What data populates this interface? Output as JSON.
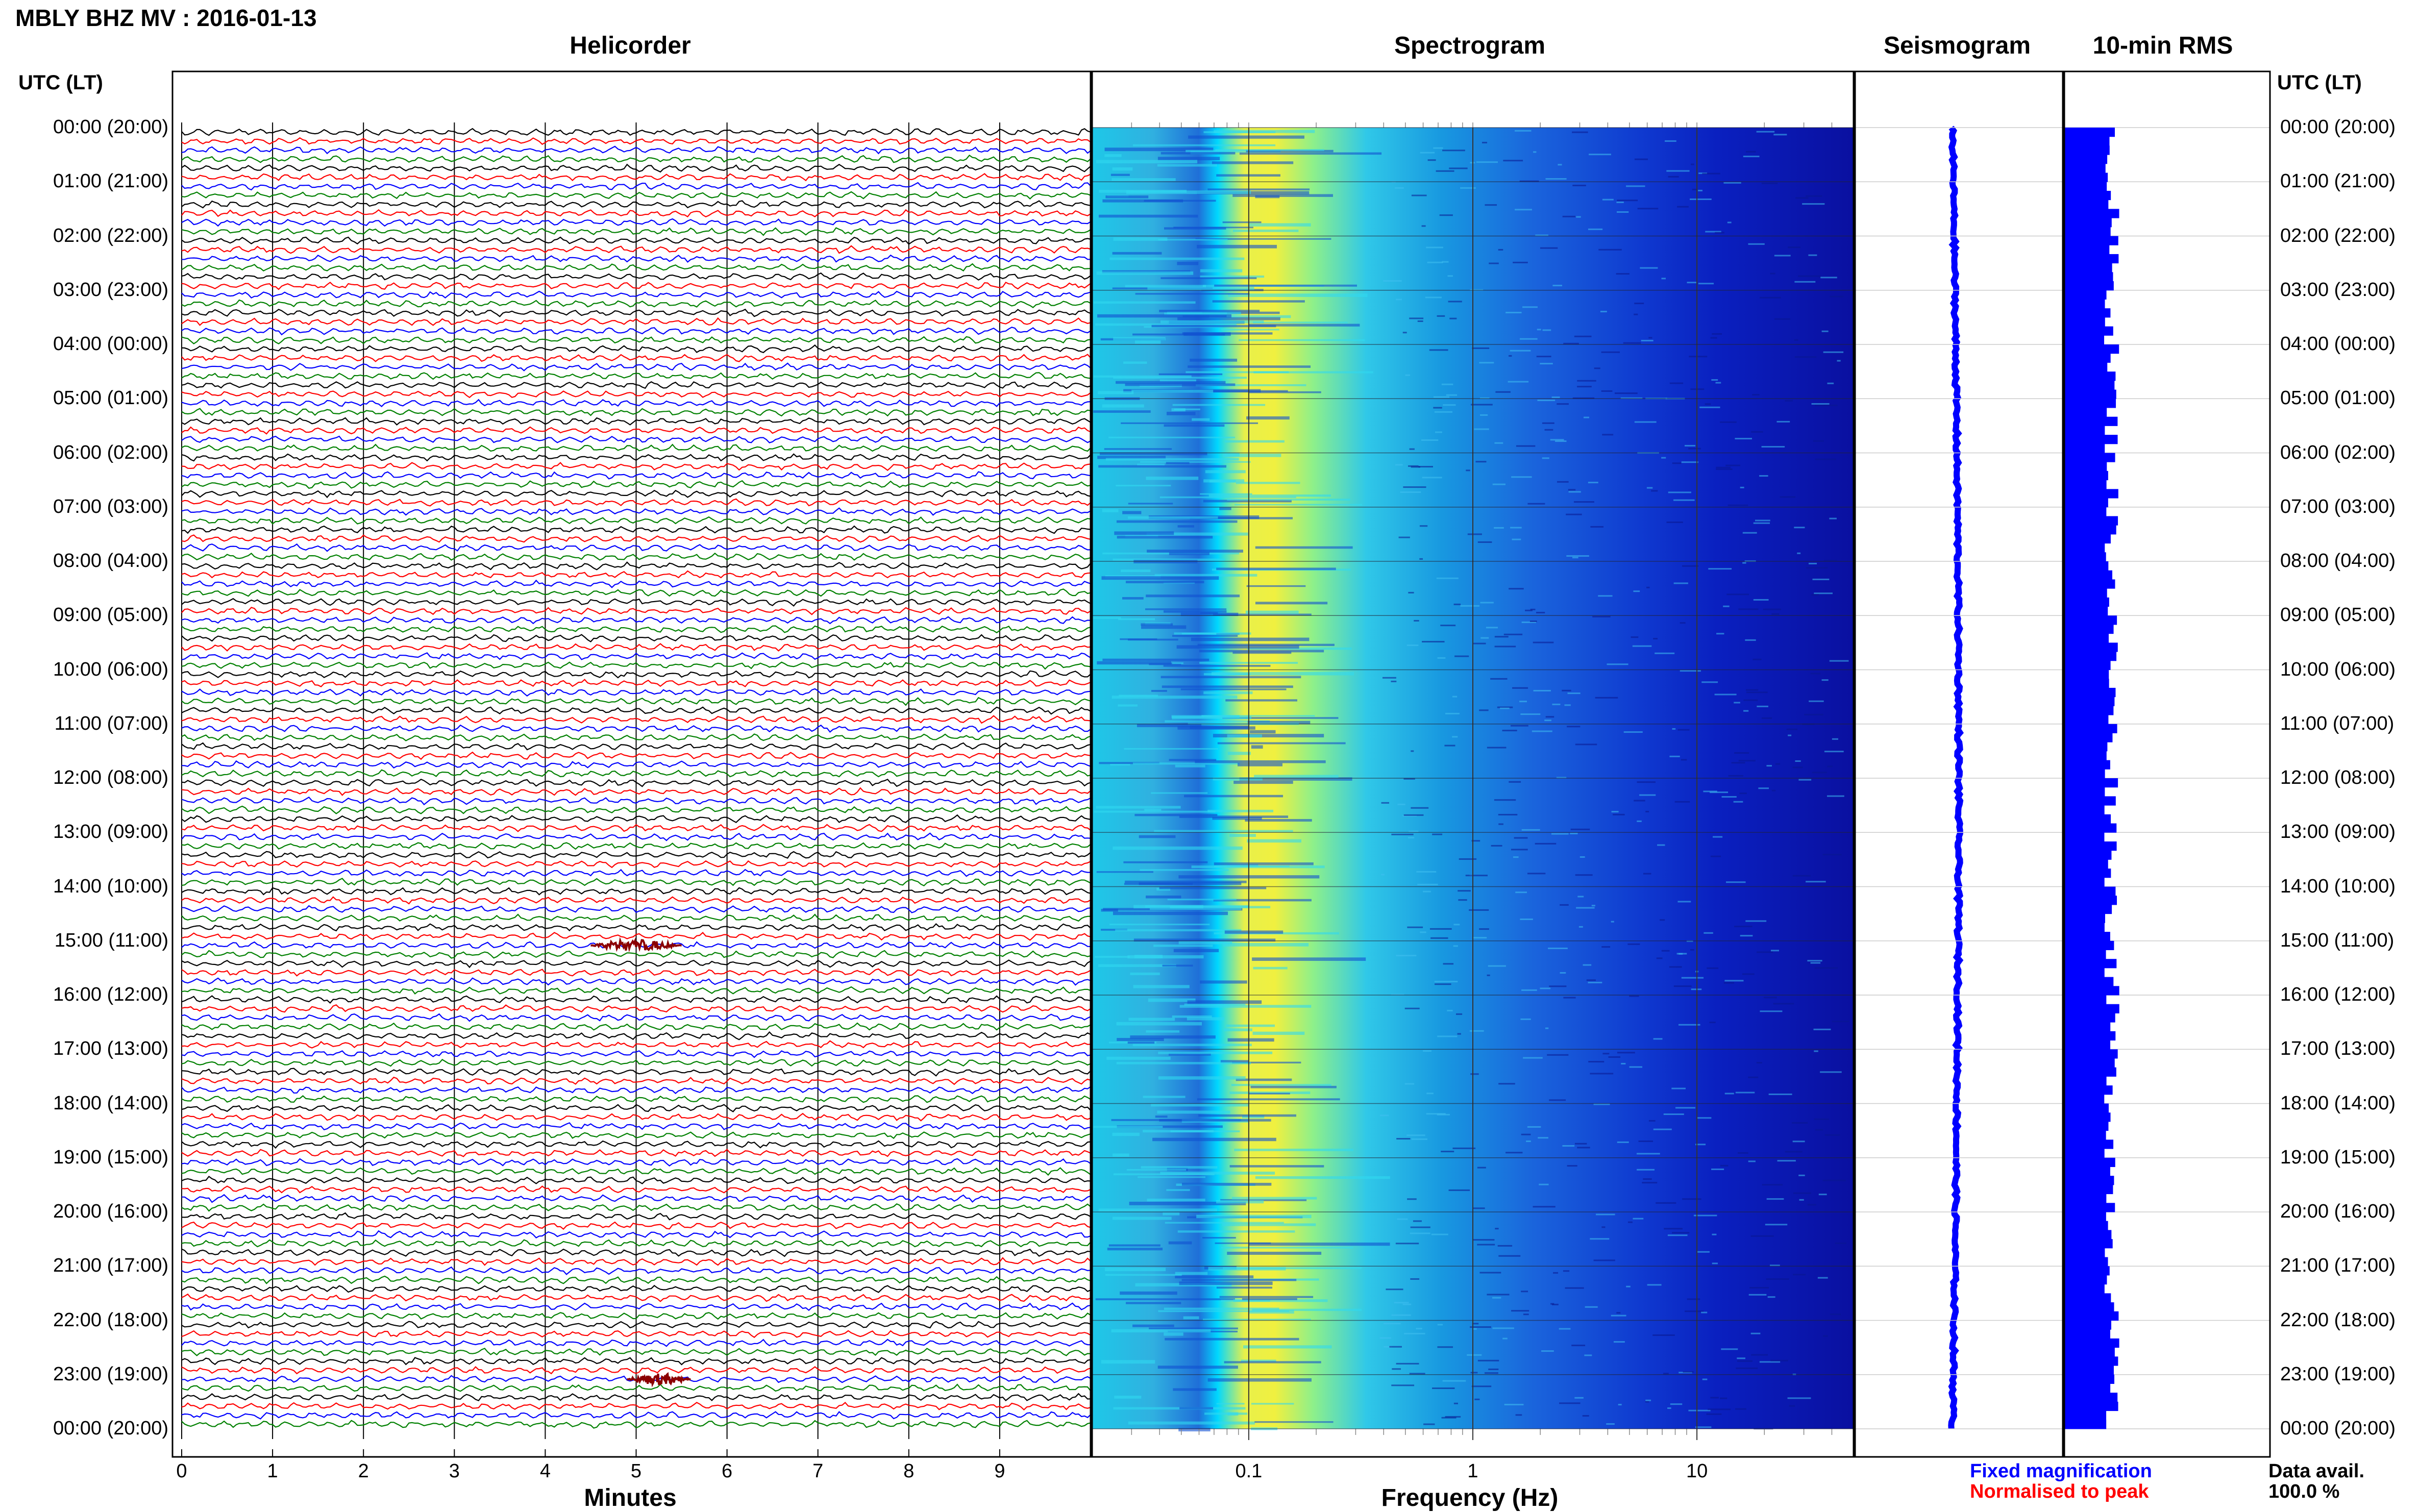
{
  "title": "MBLY BHZ MV : 2016-01-13",
  "panels": {
    "helicorder": "Helicorder",
    "spectrogram": "Spectrogram",
    "seismogram": "Seismogram",
    "rms": "10-min RMS"
  },
  "utc_header_left": "UTC (LT)",
  "utc_header_right": "UTC (LT)",
  "time_labels": [
    "00:00 (20:00)",
    "01:00 (21:00)",
    "02:00 (22:00)",
    "03:00 (23:00)",
    "04:00 (00:00)",
    "05:00 (01:00)",
    "06:00 (02:00)",
    "07:00 (03:00)",
    "08:00 (04:00)",
    "09:00 (05:00)",
    "10:00 (06:00)",
    "11:00 (07:00)",
    "12:00 (08:00)",
    "13:00 (09:00)",
    "14:00 (10:00)",
    "15:00 (11:00)",
    "16:00 (12:00)",
    "17:00 (13:00)",
    "18:00 (14:00)",
    "19:00 (15:00)",
    "20:00 (16:00)",
    "21:00 (17:00)",
    "22:00 (18:00)",
    "23:00 (19:00)",
    "00:00 (20:00)"
  ],
  "helicorder_axis": {
    "title": "Minutes",
    "ticks": [
      "0",
      "1",
      "2",
      "3",
      "4",
      "5",
      "6",
      "7",
      "8",
      "9"
    ]
  },
  "spectrogram_axis": {
    "title": "Frequency (Hz)",
    "scale": "log",
    "range": [
      0.02,
      50
    ],
    "ticks": [
      {
        "value": 0.1,
        "label": "0.1"
      },
      {
        "value": 1,
        "label": "1"
      },
      {
        "value": 10,
        "label": "10"
      }
    ]
  },
  "legend": {
    "fixed": "Fixed magnification",
    "normalised": "Normalised to peak"
  },
  "data_availability": {
    "label": "Data avail.",
    "value": "100.0 %"
  },
  "colors": {
    "trace_cycle": [
      "#000000",
      "#ff0000",
      "#0000ff",
      "#008000"
    ],
    "event_trace": "#8b0000",
    "spectrogram_low": "#00008b",
    "spectrogram_mid": "#00ffff",
    "spectrogram_peak": "#ffff00",
    "rms_bar": "#0000ff",
    "seismogram_trace": "#0000ff"
  },
  "chart_data": [
    {
      "type": "line",
      "name": "helicorder",
      "x_unit": "minutes",
      "xlim": [
        0,
        10
      ],
      "rows_per_hour": 6,
      "total_rows": 144,
      "notable_events": [
        {
          "time": "15:00",
          "minute_start": 4.5,
          "minute_end": 5.5
        },
        {
          "time": "23:00",
          "minute_start": 4.9,
          "minute_end": 5.6
        }
      ]
    },
    {
      "type": "heatmap",
      "name": "spectrogram",
      "x_unit": "Hz",
      "xlim": [
        0.02,
        50
      ],
      "peak_band_hz": [
        0.1,
        0.3
      ]
    },
    {
      "type": "line",
      "name": "seismogram"
    },
    {
      "type": "bar",
      "name": "10-min RMS",
      "interval_minutes": 10,
      "count": 144
    }
  ]
}
